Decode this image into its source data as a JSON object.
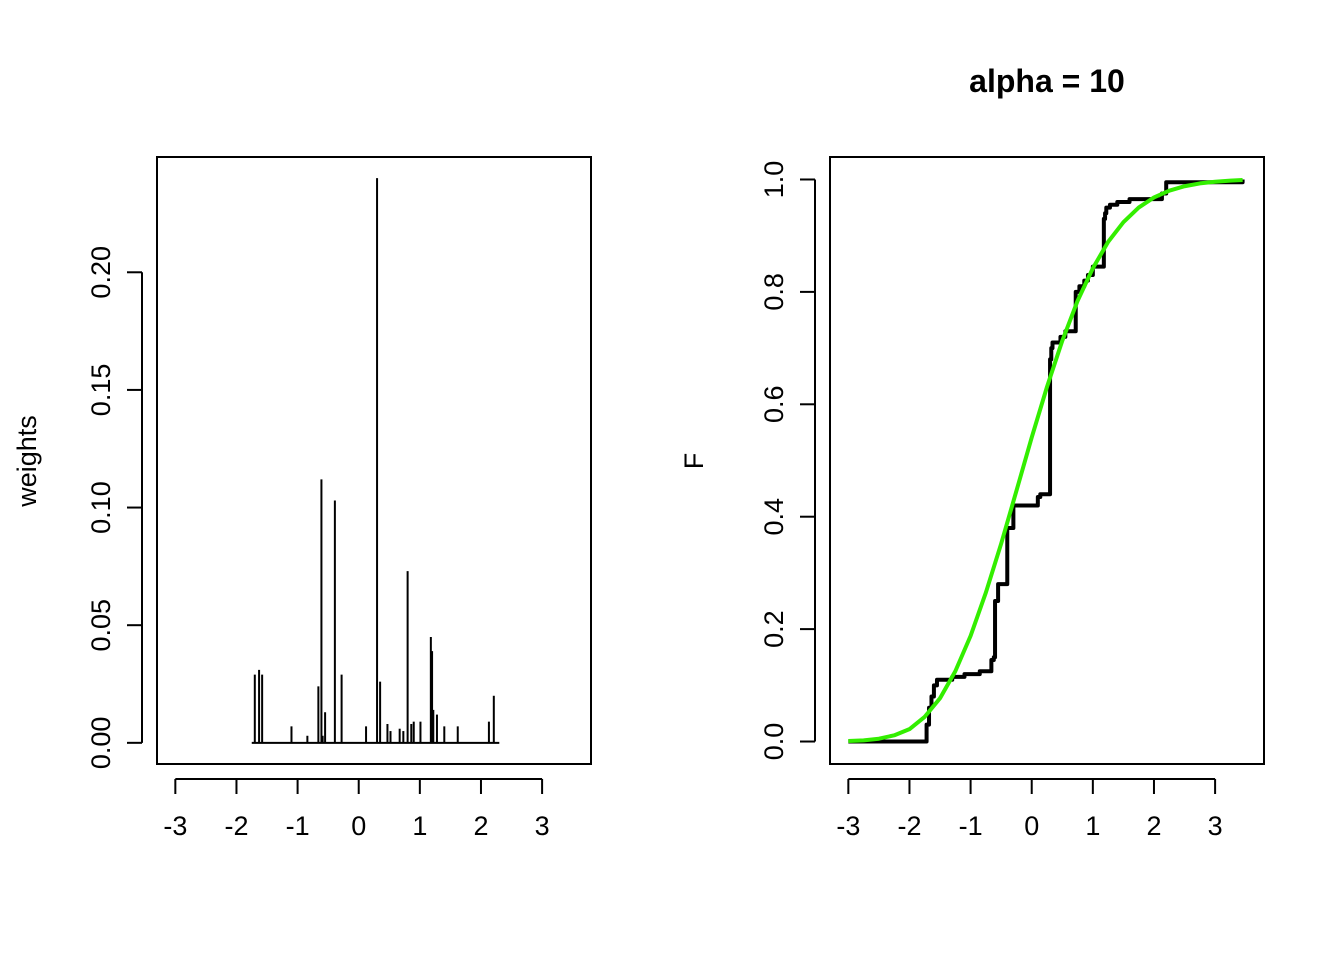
{
  "chart_data": [
    {
      "type": "bar",
      "title": "",
      "xlabel": "",
      "ylabel": "weights",
      "xlim": [
        -3.3,
        3.8
      ],
      "ylim": [
        -0.009,
        0.249
      ],
      "xticks": [
        -3,
        -2,
        -1,
        0,
        1,
        2,
        3
      ],
      "yticks": [
        "0.00",
        "0.05",
        "0.10",
        "0.15",
        "0.20"
      ],
      "grid": false,
      "series": [
        {
          "x": [
            -1.7,
            -1.63,
            -1.58,
            -1.1,
            -0.84,
            -0.66,
            -0.61,
            -0.59,
            -0.55,
            -0.39,
            -0.28,
            0.12,
            0.3,
            0.35,
            0.47,
            0.52,
            0.67,
            0.73,
            0.8,
            0.86,
            0.9,
            1.01,
            1.18,
            1.2,
            1.22,
            1.28,
            1.4,
            1.62,
            2.13,
            2.21
          ],
          "values": [
            0.029,
            0.031,
            0.029,
            0.007,
            0.003,
            0.024,
            0.112,
            0.003,
            0.013,
            0.103,
            0.029,
            0.007,
            0.24,
            0.026,
            0.008,
            0.005,
            0.006,
            0.005,
            0.073,
            0.008,
            0.009,
            0.009,
            0.045,
            0.039,
            0.014,
            0.012,
            0.007,
            0.007,
            0.009,
            0.02
          ]
        }
      ]
    },
    {
      "type": "line",
      "title": "alpha = 10",
      "xlabel": "",
      "ylabel": "F",
      "xlim": [
        -3.3,
        3.8
      ],
      "ylim": [
        -0.04,
        1.04
      ],
      "xticks": [
        -3,
        -2,
        -1,
        0,
        1,
        2,
        3
      ],
      "yticks": [
        "0.0",
        "0.2",
        "0.4",
        "0.6",
        "0.8",
        "1.0"
      ],
      "grid": false,
      "series": [
        {
          "color": "#000000",
          "step": true,
          "x": [
            -3.0,
            -1.72,
            -1.68,
            -1.64,
            -1.6,
            -1.55,
            -1.3,
            -1.1,
            -0.85,
            -0.66,
            -0.62,
            -0.6,
            -0.55,
            -0.4,
            -0.3,
            0.1,
            0.14,
            0.3,
            0.32,
            0.34,
            0.47,
            0.55,
            0.72,
            0.78,
            0.86,
            0.92,
            1.0,
            1.18,
            1.2,
            1.22,
            1.28,
            1.4,
            1.6,
            2.13,
            2.2,
            3.45
          ],
          "values": [
            0.0,
            0.03,
            0.06,
            0.08,
            0.1,
            0.11,
            0.115,
            0.12,
            0.125,
            0.145,
            0.15,
            0.25,
            0.28,
            0.38,
            0.42,
            0.435,
            0.44,
            0.68,
            0.7,
            0.71,
            0.72,
            0.73,
            0.8,
            0.81,
            0.82,
            0.83,
            0.845,
            0.93,
            0.94,
            0.95,
            0.955,
            0.96,
            0.965,
            0.975,
            0.995,
            1.0
          ]
        },
        {
          "color": "#33ee00",
          "step": false,
          "x": [
            -3.0,
            -2.75,
            -2.5,
            -2.25,
            -2.0,
            -1.75,
            -1.5,
            -1.25,
            -1.0,
            -0.75,
            -0.5,
            -0.25,
            0.0,
            0.25,
            0.5,
            0.75,
            1.0,
            1.25,
            1.5,
            1.75,
            2.0,
            2.25,
            2.5,
            2.75,
            3.0,
            3.25,
            3.45
          ],
          "values": [
            0.001,
            0.002,
            0.005,
            0.011,
            0.022,
            0.044,
            0.077,
            0.125,
            0.188,
            0.265,
            0.352,
            0.446,
            0.541,
            0.631,
            0.713,
            0.784,
            0.842,
            0.889,
            0.924,
            0.95,
            0.968,
            0.98,
            0.988,
            0.993,
            0.996,
            0.998,
            0.999
          ]
        }
      ]
    }
  ]
}
